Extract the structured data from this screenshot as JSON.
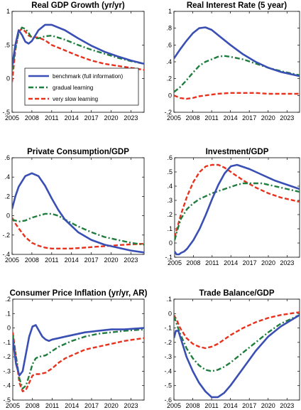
{
  "figure": {
    "legend": {
      "entries": [
        {
          "label": "benchmark (full information)",
          "series": "benchmark"
        },
        {
          "label": "gradual learning",
          "series": "gradual"
        },
        {
          "label": "very slow learning",
          "series": "slow"
        }
      ]
    }
  },
  "series_style": {
    "benchmark": {
      "color": "#3a4fb4",
      "dash": "solid",
      "label": "benchmark (full information)"
    },
    "gradual": {
      "color": "#1f7d3d",
      "dash": "dashdot",
      "label": "gradual learning"
    },
    "slow": {
      "color": "#e8321e",
      "dash": "dashed",
      "label": "very slow learning"
    }
  },
  "chart_data": [
    {
      "type": "line",
      "title": "Real GDP Growth (yr/yr)",
      "xlim": [
        2005,
        2025
      ],
      "ylim": [
        -0.5,
        1
      ],
      "xticks": [
        2005,
        2008,
        2011,
        2014,
        2017,
        2020,
        2023
      ],
      "yticks": [
        -0.5,
        0,
        0.5,
        1
      ],
      "legend": "inside-left",
      "series": [
        {
          "key": "benchmark",
          "x": [
            2005,
            2005.5,
            2006,
            2006.5,
            2007,
            2007.5,
            2008,
            2009,
            2010,
            2011,
            2013,
            2015,
            2017,
            2019,
            2021,
            2023,
            2025
          ],
          "y": [
            0.18,
            0.5,
            0.72,
            0.65,
            0.55,
            0.52,
            0.56,
            0.72,
            0.8,
            0.8,
            0.72,
            0.6,
            0.49,
            0.4,
            0.33,
            0.27,
            0.22
          ]
        },
        {
          "key": "gradual",
          "x": [
            2005,
            2005.5,
            2006,
            2006.5,
            2007,
            2007.5,
            2008,
            2009,
            2010,
            2011,
            2013,
            2015,
            2017,
            2019,
            2021,
            2023,
            2025
          ],
          "y": [
            0.12,
            0.45,
            0.68,
            0.76,
            0.74,
            0.68,
            0.6,
            0.6,
            0.63,
            0.64,
            0.58,
            0.5,
            0.43,
            0.37,
            0.31,
            0.26,
            0.22
          ]
        },
        {
          "key": "slow",
          "x": [
            2005,
            2005.5,
            2006,
            2006.5,
            2007,
            2007.5,
            2008,
            2009,
            2010,
            2011,
            2013,
            2015,
            2017,
            2019,
            2021,
            2023,
            2025
          ],
          "y": [
            -0.05,
            0.42,
            0.7,
            0.74,
            0.7,
            0.64,
            0.62,
            0.61,
            0.57,
            0.5,
            0.42,
            0.34,
            0.27,
            0.22,
            0.19,
            0.16,
            0.13
          ]
        }
      ]
    },
    {
      "type": "line",
      "title": "Real Interest Rate (5 year)",
      "xlim": [
        2005,
        2025
      ],
      "ylim": [
        -0.2,
        1
      ],
      "xticks": [
        2005,
        2008,
        2011,
        2014,
        2017,
        2020,
        2023
      ],
      "yticks": [
        -0.2,
        0,
        0.2,
        0.4,
        0.6,
        0.8,
        1
      ],
      "series": [
        {
          "key": "benchmark",
          "x": [
            2005,
            2006,
            2007,
            2008,
            2009,
            2010,
            2011,
            2012,
            2014,
            2016,
            2018,
            2020,
            2022,
            2025
          ],
          "y": [
            0.44,
            0.55,
            0.65,
            0.74,
            0.8,
            0.81,
            0.78,
            0.72,
            0.6,
            0.49,
            0.4,
            0.33,
            0.28,
            0.23
          ]
        },
        {
          "key": "gradual",
          "x": [
            2005,
            2006,
            2007,
            2008,
            2009,
            2010,
            2011,
            2012,
            2013,
            2014,
            2016,
            2018,
            2020,
            2022,
            2025
          ],
          "y": [
            0.04,
            0.1,
            0.18,
            0.27,
            0.35,
            0.4,
            0.43,
            0.46,
            0.47,
            0.46,
            0.43,
            0.38,
            0.33,
            0.29,
            0.24
          ]
        },
        {
          "key": "slow",
          "x": [
            2005,
            2006,
            2007,
            2008,
            2009,
            2010,
            2012,
            2014,
            2016,
            2018,
            2020,
            2022,
            2025
          ],
          "y": [
            0.0,
            -0.03,
            -0.04,
            -0.03,
            -0.01,
            0.0,
            0.02,
            0.03,
            0.03,
            0.03,
            0.02,
            0.02,
            0.02
          ]
        }
      ]
    },
    {
      "type": "line",
      "title": "Private Consumption/GDP",
      "xlim": [
        2005,
        2025
      ],
      "ylim": [
        -0.4,
        0.6
      ],
      "xticks": [
        2005,
        2008,
        2011,
        2014,
        2017,
        2020,
        2023
      ],
      "yticks": [
        -0.4,
        -0.2,
        0,
        0.2,
        0.4,
        0.6
      ],
      "series": [
        {
          "key": "benchmark",
          "x": [
            2005,
            2005.5,
            2006,
            2007,
            2008,
            2009,
            2010,
            2011,
            2012,
            2013,
            2015,
            2017,
            2019,
            2021,
            2023,
            2025
          ],
          "y": [
            0.07,
            0.2,
            0.3,
            0.41,
            0.44,
            0.41,
            0.31,
            0.18,
            0.06,
            -0.04,
            -0.17,
            -0.25,
            -0.3,
            -0.33,
            -0.36,
            -0.38
          ]
        },
        {
          "key": "gradual",
          "x": [
            2005,
            2006,
            2007,
            2008,
            2009,
            2010,
            2011,
            2012,
            2013,
            2015,
            2017,
            2019,
            2021,
            2023,
            2025
          ],
          "y": [
            -0.04,
            -0.06,
            -0.05,
            -0.02,
            0.0,
            0.02,
            0.02,
            0.0,
            -0.04,
            -0.11,
            -0.17,
            -0.22,
            -0.25,
            -0.28,
            -0.3
          ]
        },
        {
          "key": "slow",
          "x": [
            2005,
            2005.5,
            2006,
            2007,
            2008,
            2009,
            2010,
            2011,
            2012,
            2014,
            2016,
            2018,
            2020,
            2022,
            2025
          ],
          "y": [
            -0.02,
            -0.08,
            -0.13,
            -0.22,
            -0.28,
            -0.31,
            -0.33,
            -0.34,
            -0.34,
            -0.34,
            -0.33,
            -0.32,
            -0.31,
            -0.3,
            -0.29
          ]
        }
      ]
    },
    {
      "type": "line",
      "title": "Investment/GDP",
      "xlim": [
        2005,
        2025
      ],
      "ylim": [
        -0.1,
        0.6
      ],
      "xticks": [
        2005,
        2008,
        2011,
        2014,
        2017,
        2020,
        2023
      ],
      "yticks": [
        -0.1,
        0,
        0.1,
        0.2,
        0.3,
        0.4,
        0.5,
        0.6
      ],
      "series": [
        {
          "key": "benchmark",
          "x": [
            2005,
            2005.3,
            2005.7,
            2006,
            2006.5,
            2007,
            2008,
            2009,
            2010,
            2011,
            2012,
            2013,
            2014,
            2015,
            2017,
            2019,
            2021,
            2023,
            2025
          ],
          "y": [
            -0.06,
            -0.08,
            -0.08,
            -0.07,
            -0.06,
            -0.04,
            0.02,
            0.1,
            0.2,
            0.31,
            0.41,
            0.49,
            0.54,
            0.55,
            0.52,
            0.48,
            0.44,
            0.41,
            0.38
          ]
        },
        {
          "key": "gradual",
          "x": [
            2005,
            2005.5,
            2006,
            2007,
            2008,
            2009,
            2011,
            2013,
            2015,
            2016,
            2017,
            2019,
            2021,
            2023,
            2025
          ],
          "y": [
            0.02,
            0.1,
            0.17,
            0.24,
            0.28,
            0.31,
            0.35,
            0.38,
            0.41,
            0.42,
            0.42,
            0.42,
            0.4,
            0.38,
            0.36
          ]
        },
        {
          "key": "slow",
          "x": [
            2005,
            2005.5,
            2006,
            2007,
            2008,
            2009,
            2010,
            2011,
            2012,
            2013,
            2014,
            2016,
            2018,
            2020,
            2022,
            2025
          ],
          "y": [
            0.04,
            0.12,
            0.2,
            0.33,
            0.43,
            0.5,
            0.54,
            0.55,
            0.55,
            0.53,
            0.5,
            0.44,
            0.39,
            0.35,
            0.32,
            0.29
          ]
        }
      ]
    },
    {
      "type": "line",
      "title": "Consumer Price Inflation (yr/yr, AR)",
      "xlim": [
        2005,
        2025
      ],
      "ylim": [
        -0.5,
        0.2
      ],
      "xticks": [
        2005,
        2008,
        2011,
        2014,
        2017,
        2020,
        2023
      ],
      "yticks": [
        -0.5,
        -0.4,
        -0.3,
        -0.2,
        -0.1,
        0,
        0.1,
        0.2
      ],
      "series": [
        {
          "key": "benchmark",
          "x": [
            2005,
            2005.5,
            2006,
            2006.5,
            2007,
            2007.5,
            2008,
            2008.5,
            2009,
            2009.5,
            2010,
            2010.5,
            2011,
            2012,
            2013,
            2014,
            2016,
            2018,
            2020,
            2022,
            2025
          ],
          "y": [
            -0.08,
            -0.25,
            -0.33,
            -0.3,
            -0.18,
            -0.06,
            0.01,
            0.02,
            -0.02,
            -0.06,
            -0.08,
            -0.09,
            -0.08,
            -0.07,
            -0.06,
            -0.05,
            -0.03,
            -0.02,
            -0.01,
            -0.01,
            0.0
          ]
        },
        {
          "key": "gradual",
          "x": [
            2005,
            2005.5,
            2006,
            2006.5,
            2007,
            2007.5,
            2008,
            2008.5,
            2009,
            2010,
            2011,
            2012,
            2013,
            2014,
            2016,
            2018,
            2020,
            2022,
            2025
          ],
          "y": [
            -0.05,
            -0.2,
            -0.35,
            -0.42,
            -0.4,
            -0.33,
            -0.25,
            -0.21,
            -0.2,
            -0.19,
            -0.16,
            -0.13,
            -0.11,
            -0.09,
            -0.06,
            -0.04,
            -0.03,
            -0.02,
            -0.01
          ]
        },
        {
          "key": "slow",
          "x": [
            2005,
            2005.5,
            2006,
            2006.5,
            2007,
            2007.5,
            2008,
            2008.5,
            2009,
            2010,
            2011,
            2012,
            2013,
            2014,
            2016,
            2018,
            2020,
            2022,
            2025
          ],
          "y": [
            -0.03,
            -0.2,
            -0.38,
            -0.44,
            -0.43,
            -0.38,
            -0.33,
            -0.32,
            -0.32,
            -0.31,
            -0.28,
            -0.24,
            -0.21,
            -0.19,
            -0.15,
            -0.13,
            -0.11,
            -0.09,
            -0.07
          ]
        }
      ]
    },
    {
      "type": "line",
      "title": "Trade Balance/GDP",
      "xlim": [
        2005,
        2025
      ],
      "ylim": [
        -0.6,
        0.1
      ],
      "xticks": [
        2005,
        2008,
        2011,
        2014,
        2017,
        2020,
        2023
      ],
      "yticks": [
        -0.6,
        -0.5,
        -0.4,
        -0.3,
        -0.2,
        -0.1,
        0,
        0.1
      ],
      "series": [
        {
          "key": "benchmark",
          "x": [
            2005,
            2005.3,
            2005.7,
            2006,
            2006.5,
            2007,
            2008,
            2009,
            2010,
            2011,
            2012,
            2013,
            2014,
            2016,
            2018,
            2020,
            2022,
            2025
          ],
          "y": [
            -0.17,
            -0.12,
            -0.12,
            -0.16,
            -0.23,
            -0.3,
            -0.4,
            -0.48,
            -0.54,
            -0.58,
            -0.58,
            -0.55,
            -0.5,
            -0.38,
            -0.26,
            -0.16,
            -0.09,
            -0.01
          ]
        },
        {
          "key": "gradual",
          "x": [
            2005,
            2005.5,
            2006,
            2007,
            2008,
            2009,
            2010,
            2011,
            2012,
            2013,
            2014,
            2016,
            2018,
            2020,
            2022,
            2025
          ],
          "y": [
            -0.02,
            -0.08,
            -0.14,
            -0.24,
            -0.31,
            -0.36,
            -0.39,
            -0.4,
            -0.39,
            -0.37,
            -0.34,
            -0.27,
            -0.2,
            -0.13,
            -0.07,
            -0.01
          ]
        },
        {
          "key": "slow",
          "x": [
            2005,
            2005.5,
            2006,
            2007,
            2008,
            2009,
            2010,
            2011,
            2012,
            2013,
            2014,
            2016,
            2018,
            2020,
            2022,
            2025
          ],
          "y": [
            -0.01,
            -0.05,
            -0.1,
            -0.17,
            -0.21,
            -0.23,
            -0.24,
            -0.23,
            -0.21,
            -0.18,
            -0.15,
            -0.1,
            -0.06,
            -0.03,
            -0.01,
            0.01
          ]
        }
      ]
    }
  ]
}
